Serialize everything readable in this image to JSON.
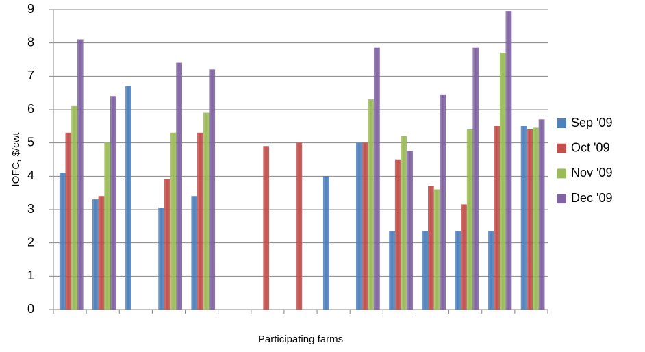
{
  "chart_data": {
    "type": "bar",
    "y_label": "IOFC, $/cwt",
    "x_label": "Participating farms",
    "categories": [
      null,
      null,
      null,
      null,
      null,
      null,
      null,
      null,
      null,
      null,
      null,
      null,
      null,
      null,
      null
    ],
    "series": [
      {
        "name": "Sep '09",
        "color": "#4f81bd",
        "values": [
          4.1,
          3.3,
          6.7,
          3.05,
          3.4,
          null,
          null,
          null,
          4.0,
          5.0,
          2.35,
          2.35,
          2.35,
          2.35,
          5.5
        ]
      },
      {
        "name": "Oct '09",
        "color": "#c0504d",
        "values": [
          5.3,
          3.4,
          null,
          3.9,
          5.3,
          null,
          4.9,
          5.0,
          null,
          5.0,
          4.5,
          3.7,
          3.15,
          5.5,
          5.4
        ]
      },
      {
        "name": "Nov '09",
        "color": "#9bbb59",
        "values": [
          6.1,
          5.0,
          null,
          5.3,
          5.9,
          null,
          null,
          null,
          null,
          6.3,
          5.2,
          3.6,
          5.4,
          7.7,
          5.45
        ]
      },
      {
        "name": "Dec '09",
        "color": "#8064a2",
        "values": [
          8.1,
          6.4,
          null,
          7.4,
          7.2,
          null,
          null,
          null,
          null,
          7.85,
          4.75,
          6.45,
          7.85,
          8.95,
          5.7
        ]
      }
    ],
    "ylim": [
      0,
      9
    ],
    "yticks": [
      0,
      1,
      2,
      3,
      4,
      5,
      6,
      7,
      8,
      9
    ],
    "grid": true,
    "legend": "right"
  }
}
